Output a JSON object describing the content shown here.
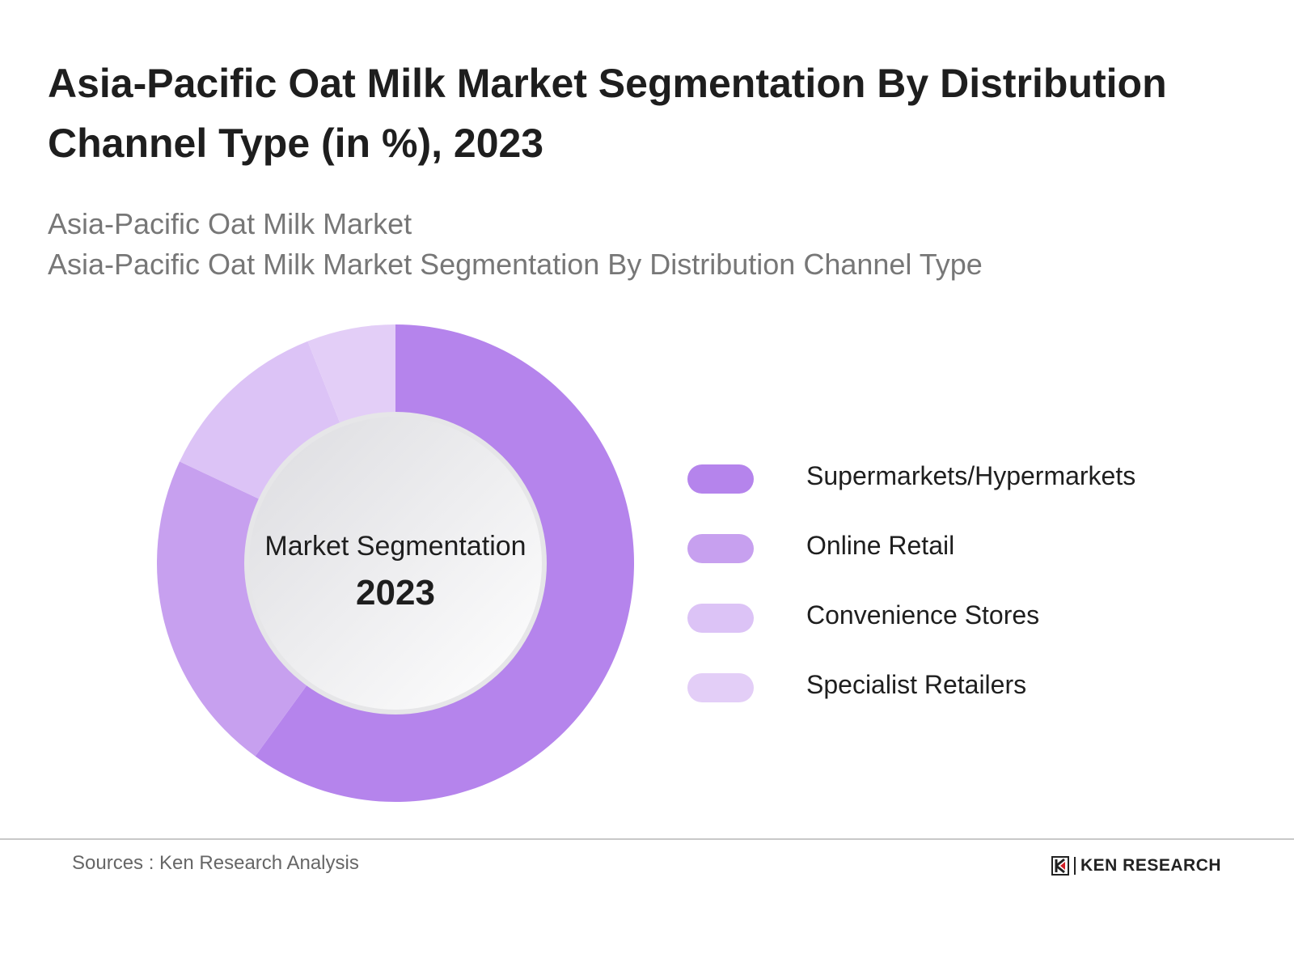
{
  "header": {
    "title": "Asia-Pacific Oat Milk Market Segmentation By Distribution Channel Type (in %), 2023",
    "subtitle_1": "Asia-Pacific Oat Milk Market",
    "subtitle_2": "Asia-Pacific Oat Milk Market Segmentation By Distribution Channel Type"
  },
  "chart_data": {
    "type": "pie",
    "variant": "donut",
    "title": "Asia-Pacific Oat Milk Market Segmentation By Distribution Channel Type (in %), 2023",
    "center_label": "Market Segmentation",
    "center_year": "2023",
    "legend_position": "right",
    "categories": [
      "Supermarkets/Hypermarkets",
      "Online Retail",
      "Convenience Stores",
      "Specialist Retailers"
    ],
    "values": [
      60,
      22,
      12,
      6
    ],
    "colors": [
      "#b584ec",
      "#c7a0ef",
      "#dcc3f6",
      "#e3cef7"
    ]
  },
  "footer": {
    "sources": "Sources : Ken Research Analysis",
    "logo_text": "KEN RESEARCH"
  }
}
